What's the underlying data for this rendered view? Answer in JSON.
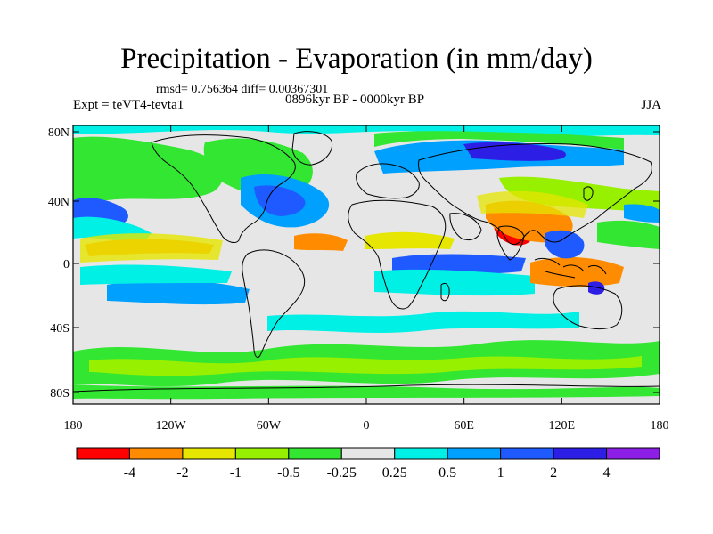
{
  "title": "Precipitation - Evaporation (in mm/day)",
  "stats_line": "rmsd= 0.756364 diff= 0.00367301",
  "left_label": "Expt = teVT4-tevta1",
  "center_label": "0896kyr BP - 0000kyr BP",
  "right_label": "JJA",
  "lat_ticks": [
    "80N",
    "40N",
    "0",
    "40S",
    "80S"
  ],
  "lon_ticks": [
    "180",
    "120W",
    "60W",
    "0",
    "60E",
    "120E",
    "180"
  ],
  "colorbar": {
    "colors": [
      "#ff0000",
      "#ff8c00",
      "#e6e600",
      "#96f000",
      "#32e632",
      "#e6e6e6",
      "#00f0e6",
      "#00a0ff",
      "#1e5aff",
      "#2d1ee6",
      "#8c1ee6"
    ],
    "labels": [
      "-4",
      "-2",
      "-1",
      "-0.5",
      "-0.25",
      "0.25",
      "0.5",
      "1",
      "2",
      "4"
    ]
  },
  "colors": {
    "neutral": "#e6e6e6",
    "coast": "#000000"
  }
}
